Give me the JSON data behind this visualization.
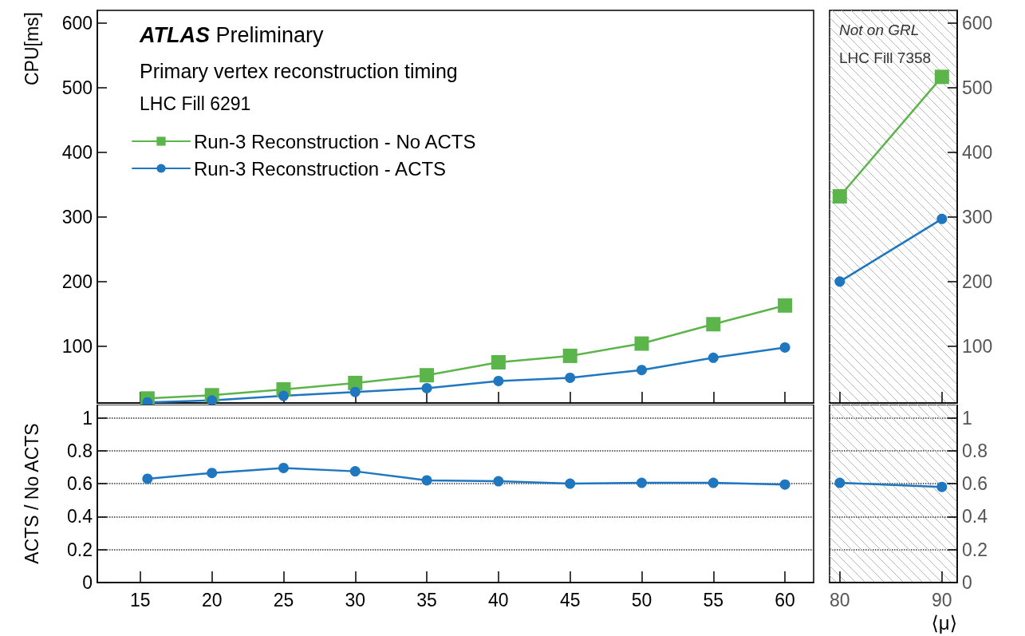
{
  "chart_data": [
    {
      "type": "line",
      "title": "ATLAS Preliminary",
      "subtitle": "Primary vertex reconstruction timing",
      "annotations": [
        "LHC Fill 6291"
      ],
      "ylabel": "CPU[ms]",
      "x": [
        15.5,
        20,
        25,
        30,
        35,
        40,
        45,
        50,
        55,
        60
      ],
      "xlim": [
        12,
        62
      ],
      "xticks": [
        15,
        20,
        25,
        30,
        35,
        40,
        45,
        50,
        55,
        60
      ],
      "ylim": [
        12,
        620
      ],
      "yticks": [
        100,
        200,
        300,
        400,
        500,
        600
      ],
      "tick_labels": "y",
      "legend": "top left",
      "grid": false,
      "series": [
        {
          "name": "Run-3 Reconstruction - No ACTS",
          "color": "#5cb54a",
          "marker": "square",
          "values": [
            19,
            24,
            33,
            43,
            55,
            75,
            85,
            104,
            134,
            163
          ]
        },
        {
          "name": "Run-3 Reconstruction - ACTS",
          "color": "#1f77c0",
          "marker": "circle",
          "values": [
            13,
            16,
            23,
            29,
            35,
            46,
            51,
            63,
            82,
            98
          ]
        }
      ]
    },
    {
      "type": "line",
      "annotations": [
        "Not on GRL",
        "LHC Fill 7358"
      ],
      "x": [
        80,
        90
      ],
      "xlim": [
        79,
        91.5
      ],
      "xticks": [
        80,
        90
      ],
      "ylim": [
        12,
        620
      ],
      "yticks": [
        100,
        200,
        300,
        400,
        500,
        600
      ],
      "tick_labels": "y",
      "legend": false,
      "grid": false,
      "bands": [
        {
          "axis": "x",
          "from": 79,
          "to": 91.5,
          "color": "#b8b8b8"
        }
      ],
      "series": [
        {
          "color": "#5cb54a",
          "marker": "square",
          "values": [
            332,
            517
          ]
        },
        {
          "color": "#1f77c0",
          "marker": "circle",
          "values": [
            200,
            297
          ]
        }
      ]
    },
    {
      "type": "line",
      "ylabel": "ACTS / No ACTS",
      "x": [
        15.5,
        20,
        25,
        30,
        35,
        40,
        45,
        50,
        55,
        60
      ],
      "xlim": [
        12,
        62
      ],
      "xticks": [
        15,
        20,
        25,
        30,
        35,
        40,
        45,
        50,
        55,
        60
      ],
      "ylim": [
        0,
        1.08
      ],
      "yticks": [
        0,
        0.2,
        0.4,
        0.6,
        0.8,
        1
      ],
      "grid": "y",
      "legend": false,
      "series": [
        {
          "color": "#1f77c0",
          "marker": "circle",
          "values": [
            0.63,
            0.665,
            0.695,
            0.675,
            0.62,
            0.615,
            0.6,
            0.605,
            0.605,
            0.595
          ]
        }
      ]
    },
    {
      "type": "line",
      "xlabel": "⟨μ⟩",
      "x": [
        80,
        90
      ],
      "xlim": [
        79,
        91.5
      ],
      "xticks": [
        80,
        90
      ],
      "ylim": [
        0,
        1.08
      ],
      "yticks": [
        0,
        0.2,
        0.4,
        0.6,
        0.8,
        1
      ],
      "grid": "y",
      "legend": false,
      "bands": [
        {
          "axis": "x",
          "from": 79,
          "to": 91.5,
          "color": "#b8b8b8"
        }
      ],
      "series": [
        {
          "color": "#1f77c0",
          "marker": "circle",
          "values": [
            0.605,
            0.58
          ]
        }
      ]
    }
  ]
}
